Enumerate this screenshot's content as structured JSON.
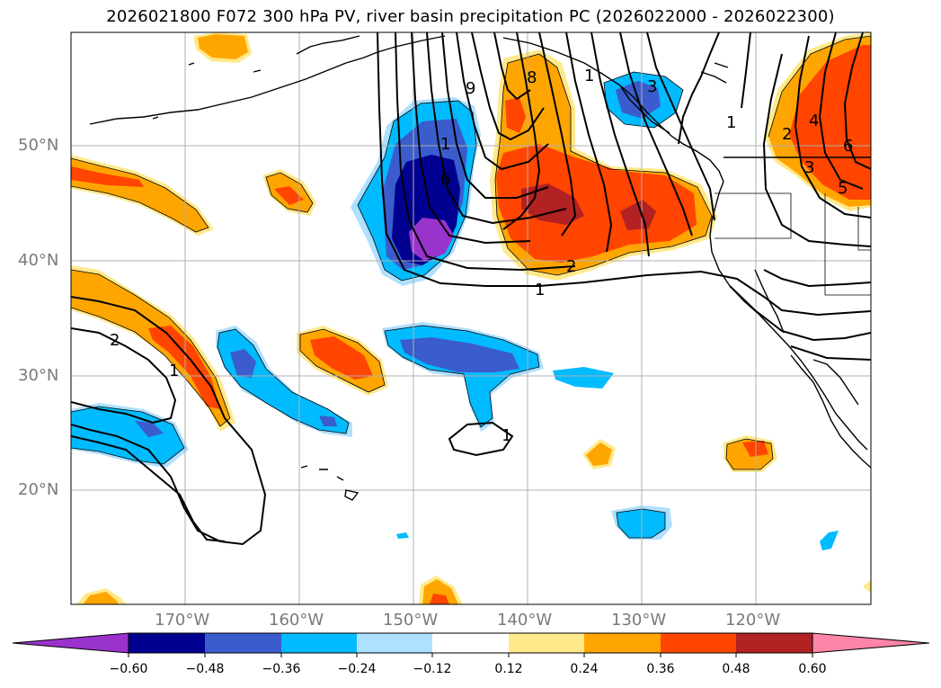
{
  "title": "2026021800 F072 300 hPa PV, river basin precipitation PC (2026022000 - 2026022300)",
  "lat_labels": [
    "50°N",
    "40°N",
    "30°N",
    "20°N"
  ],
  "lon_labels": [
    "170°W",
    "160°W",
    "150°W",
    "140°W",
    "130°W",
    "120°W"
  ],
  "colorbar": {
    "ticks": [
      "−0.60",
      "−0.48",
      "−0.36",
      "−0.24",
      "−0.12",
      "0.12",
      "0.24",
      "0.36",
      "0.48",
      "0.60"
    ],
    "colors": [
      "#9933cc",
      "#000090",
      "#3a5ccc",
      "#00bbff",
      "#aee0ff",
      "#ffffff",
      "#ffe98a",
      "#ffa500",
      "#ff4500",
      "#b22222",
      "#ff85a8"
    ]
  },
  "contour_labels": [
    "1",
    "2",
    "9",
    "8",
    "6",
    "3",
    "1",
    "2",
    "4",
    "3",
    "5",
    "6",
    "1",
    "2",
    "1",
    "1",
    "1"
  ]
}
